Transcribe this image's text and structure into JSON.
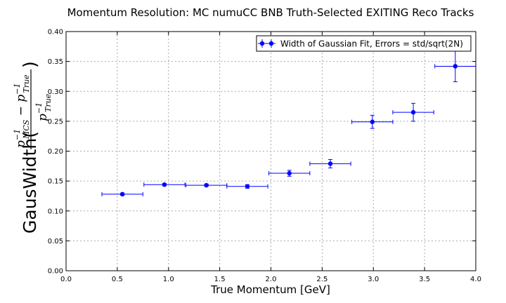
{
  "chart_data": {
    "type": "scatter",
    "title": "Momentum Resolution: MC numuCC BNB Truth-Selected EXITING Reco Tracks",
    "xlabel": "True Momentum [GeV]",
    "ylabel": "GausWidth(",
    "ylabel_fraction": {
      "numerator": {
        "base": "p",
        "sup": "−1",
        "sub": "MCS",
        "minus": " − ",
        "base2": "p",
        "sup2": "−1",
        "sub2": "True"
      },
      "denominator": {
        "base": "p",
        "sup": "−1",
        "sub": "True"
      },
      "close": ")"
    },
    "xlim": [
      0.0,
      4.0
    ],
    "ylim": [
      0.0,
      0.4
    ],
    "x_ticks": [
      "0.0",
      "0.5",
      "1.0",
      "1.5",
      "2.0",
      "2.5",
      "3.0",
      "3.5",
      "4.0"
    ],
    "y_ticks": [
      "0.00",
      "0.05",
      "0.10",
      "0.15",
      "0.20",
      "0.25",
      "0.30",
      "0.35",
      "0.40"
    ],
    "grid": true,
    "legend_position": "top-right",
    "series": [
      {
        "name": "Width of Gaussian Fit, Errors = std/sqrt(2N)",
        "color": "#0000ff",
        "x": [
          0.55,
          0.96,
          1.37,
          1.77,
          2.18,
          2.58,
          2.99,
          3.39,
          3.8
        ],
        "y": [
          0.128,
          0.144,
          0.143,
          0.141,
          0.163,
          0.179,
          0.249,
          0.265,
          0.342
        ],
        "xerr": [
          0.2,
          0.2,
          0.2,
          0.2,
          0.2,
          0.2,
          0.2,
          0.2,
          0.2
        ],
        "yerr": [
          0.002,
          0.002,
          0.002,
          0.003,
          0.005,
          0.007,
          0.011,
          0.015,
          0.026
        ]
      }
    ]
  }
}
